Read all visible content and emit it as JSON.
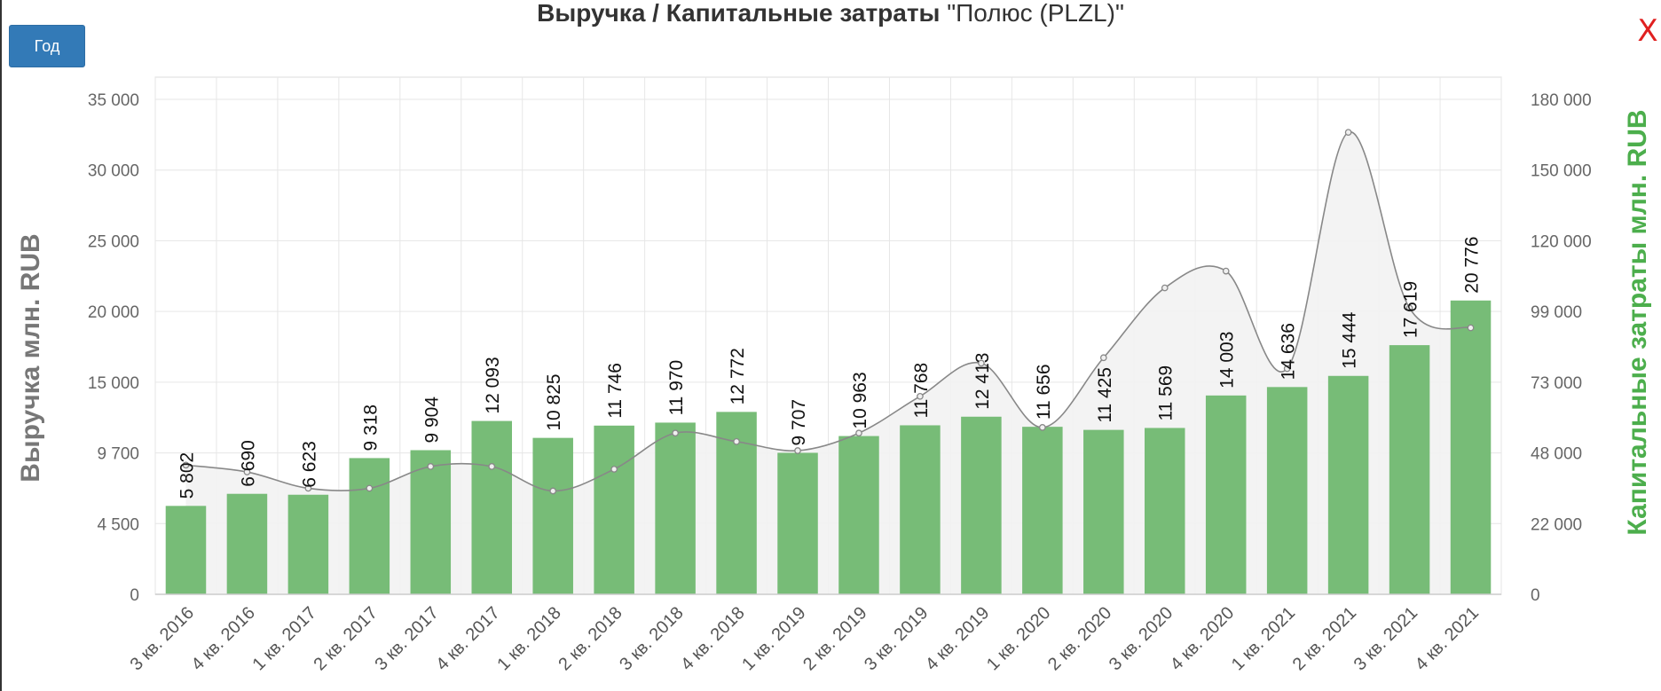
{
  "controls": {
    "period_label": "Год",
    "close_label": "X"
  },
  "colors": {
    "bar": "#77bc77",
    "bar_highlight": "#4cae4c",
    "line": "#888888",
    "area": "#f2f2f2",
    "grid": "#e6e6e6",
    "left_axis_label": "#777777",
    "right_axis_label": "#4cae4c"
  },
  "chart_data": {
    "type": "bar",
    "title": "Выручка / Капитальные затраты",
    "title_company": "\"Полюс (PLZL)\"",
    "categories": [
      "3 кв. 2016",
      "4 кв. 2016",
      "1 кв. 2017",
      "2 кв. 2017",
      "3 кв. 2017",
      "4 кв. 2017",
      "1 кв. 2018",
      "2 кв. 2018",
      "3 кв. 2018",
      "4 кв. 2018",
      "1 кв. 2019",
      "2 кв. 2019",
      "3 кв. 2019",
      "4 кв. 2019",
      "1 кв. 2020",
      "2 кв. 2020",
      "3 кв. 2020",
      "4 кв. 2020",
      "1 кв. 2021",
      "2 кв. 2021",
      "3 кв. 2021",
      "4 кв. 2021"
    ],
    "series": [
      {
        "axis": "left",
        "chart": "bar",
        "values": [
          5802,
          6690,
          6623,
          9318,
          9904,
          12093,
          10825,
          11746,
          11970,
          12772,
          9707,
          10963,
          11768,
          12413,
          11656,
          11425,
          11569,
          14003,
          14636,
          15444,
          17619,
          20776
        ],
        "value_labels": [
          "5 802",
          "6 690",
          "6 623",
          "9 318",
          "9 904",
          "12 093",
          "10 825",
          "11 746",
          "11 970",
          "12 772",
          "9 707",
          "10 963",
          "11 768",
          "12 413",
          "11 656",
          "11 425",
          "11 569",
          "14 003",
          "14 636",
          "15 444",
          "17 619",
          "20 776"
        ]
      },
      {
        "axis": "right",
        "chart": "area",
        "values": [
          43500,
          41000,
          35000,
          35000,
          43000,
          43000,
          34000,
          42000,
          55000,
          52000,
          48800,
          55000,
          68000,
          80000,
          57000,
          82000,
          106000,
          111000,
          78000,
          166000,
          100000,
          93000
        ]
      }
    ],
    "y_left": {
      "label": "Выручка млн. RUB",
      "ticks": [
        0,
        4500,
        9700,
        15000,
        20000,
        25000,
        30000,
        35000
      ],
      "tick_labels": [
        "0",
        "4 500",
        "9 700",
        "15 000",
        "20 000",
        "25 000",
        "30 000",
        "35 000"
      ]
    },
    "y_right": {
      "label": "Капитальные затраты млн. RUB",
      "ticks": [
        0,
        22000,
        48000,
        73000,
        99000,
        120000,
        150000,
        180000
      ],
      "tick_labels": [
        "0",
        "22 000",
        "48 000",
        "73 000",
        "99 000",
        "120 000",
        "150 000",
        "180 000"
      ]
    },
    "grid": true
  }
}
